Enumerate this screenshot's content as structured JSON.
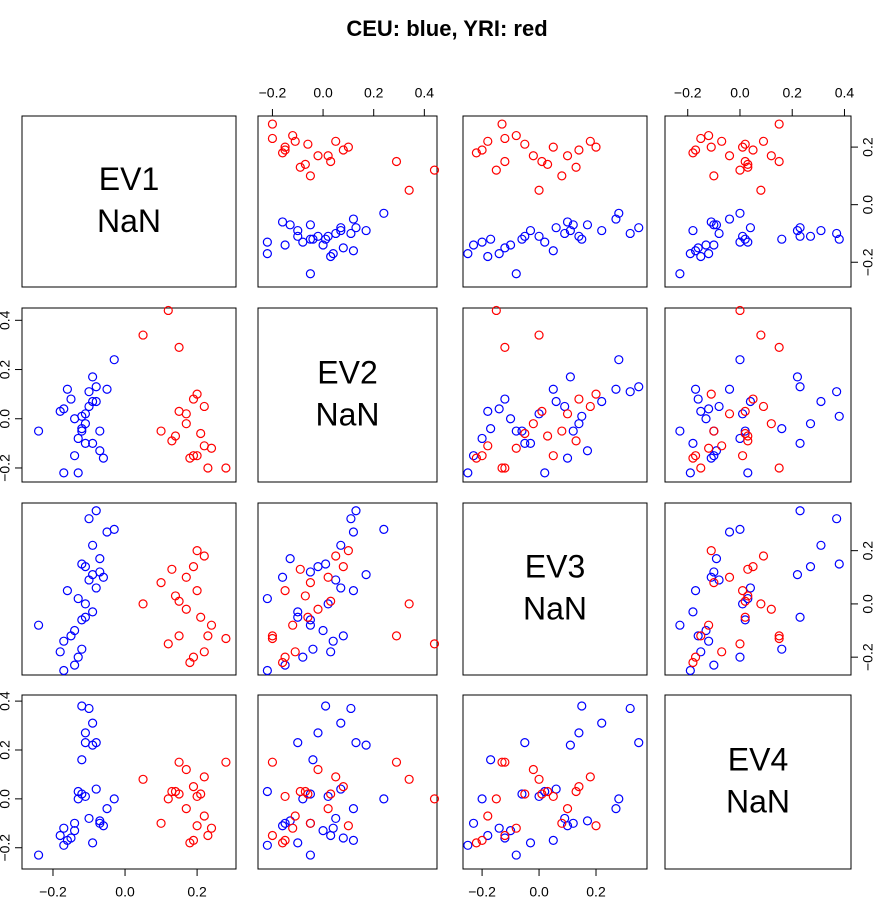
{
  "chart_data": {
    "type": "pairs",
    "title": "CEU: blue, YRI: red",
    "variables": [
      {
        "name": "EV1",
        "diag_label": "NaN",
        "lim": [
          -0.286,
          0.308
        ],
        "ticks": [
          {
            "value": -0.2,
            "label": "−0.2"
          },
          {
            "value": 0,
            "label": "0.0"
          },
          0.2
        ]
      },
      {
        "name": "EV2",
        "diag_label": "NaN",
        "lim": [
          -0.257,
          0.45
        ],
        "ticks": [
          {
            "value": -0.2,
            "label": "−0.2"
          },
          {
            "value": 0,
            "label": "0.0"
          },
          0.2,
          0.4
        ]
      },
      {
        "name": "EV3",
        "diag_label": "NaN",
        "lim": [
          -0.267,
          0.379
        ],
        "ticks": [
          {
            "value": -0.2,
            "label": "−0.2"
          },
          {
            "value": 0,
            "label": "0.0"
          },
          0.2
        ]
      },
      {
        "name": "EV4",
        "diag_label": "NaN",
        "lim": [
          -0.287,
          0.425
        ],
        "ticks": [
          {
            "value": -0.2,
            "label": "−0.2"
          },
          {
            "value": 0,
            "label": "0.0"
          },
          0.2,
          0.4
        ]
      }
    ],
    "series": [
      {
        "color": "#0000ff",
        "columns": [
          [
            -0.24,
            -0.18,
            -0.17,
            -0.16,
            -0.15,
            -0.14,
            -0.13,
            -0.12,
            -0.12,
            -0.11,
            -0.11,
            -0.1,
            -0.09,
            -0.09,
            -0.08,
            -0.08,
            -0.07,
            -0.06,
            -0.05,
            -0.03,
            -0.17,
            -0.13,
            -0.09,
            -0.12,
            -0.1,
            -0.14,
            -0.07,
            -0.11
          ],
          [
            -0.05,
            0.03,
            0.04,
            0.12,
            0.08,
            -0.15,
            -0.08,
            0.01,
            -0.04,
            -0.1,
            0.02,
            0.11,
            0.07,
            0.17,
            0.07,
            0.13,
            -0.05,
            -0.16,
            0.12,
            0.24,
            -0.22,
            -0.22,
            -0.1,
            -0.05,
            0.05,
            0.0,
            -0.13,
            -0.02
          ],
          [
            -0.08,
            -0.18,
            -0.14,
            0.05,
            -0.12,
            -0.23,
            -0.2,
            0.15,
            -0.17,
            -0.05,
            0.0,
            0.32,
            0.22,
            0.11,
            0.06,
            0.35,
            0.12,
            0.1,
            0.27,
            0.28,
            -0.25,
            0.02,
            -0.03,
            -0.06,
            0.09,
            -0.1,
            0.17,
            0.14
          ],
          [
            -0.23,
            -0.15,
            -0.12,
            -0.17,
            -0.16,
            -0.1,
            0.0,
            0.38,
            0.16,
            0.23,
            0.01,
            0.37,
            0.31,
            0.22,
            0.04,
            0.23,
            -0.1,
            -0.11,
            -0.04,
            0.0,
            -0.19,
            0.03,
            -0.18,
            0.02,
            -0.08,
            -0.13,
            -0.09,
            0.27
          ]
        ]
      },
      {
        "color": "#ff0000",
        "columns": [
          [
            0.05,
            0.12,
            0.15,
            0.1,
            0.13,
            0.15,
            0.17,
            0.18,
            0.19,
            0.19,
            0.2,
            0.21,
            0.22,
            0.23,
            0.24,
            0.28,
            0.2,
            0.17,
            0.14,
            0.22
          ],
          [
            0.34,
            0.44,
            0.29,
            -0.05,
            -0.09,
            0.03,
            -0.02,
            -0.16,
            -0.15,
            0.08,
            0.1,
            -0.06,
            0.05,
            -0.2,
            -0.12,
            -0.2,
            -0.15,
            0.02,
            -0.07,
            -0.11
          ],
          [
            0.0,
            -0.15,
            -0.12,
            0.08,
            0.13,
            0.01,
            -0.02,
            -0.22,
            -0.2,
            0.14,
            0.2,
            -0.05,
            0.18,
            -0.12,
            -0.08,
            -0.13,
            0.05,
            0.1,
            0.03,
            -0.18
          ],
          [
            0.08,
            0.0,
            0.15,
            -0.1,
            0.03,
            0.02,
            0.12,
            -0.18,
            -0.17,
            0.05,
            -0.11,
            0.02,
            0.09,
            -0.15,
            -0.12,
            0.15,
            0.01,
            -0.04,
            0.03,
            -0.07
          ]
        ]
      }
    ]
  }
}
